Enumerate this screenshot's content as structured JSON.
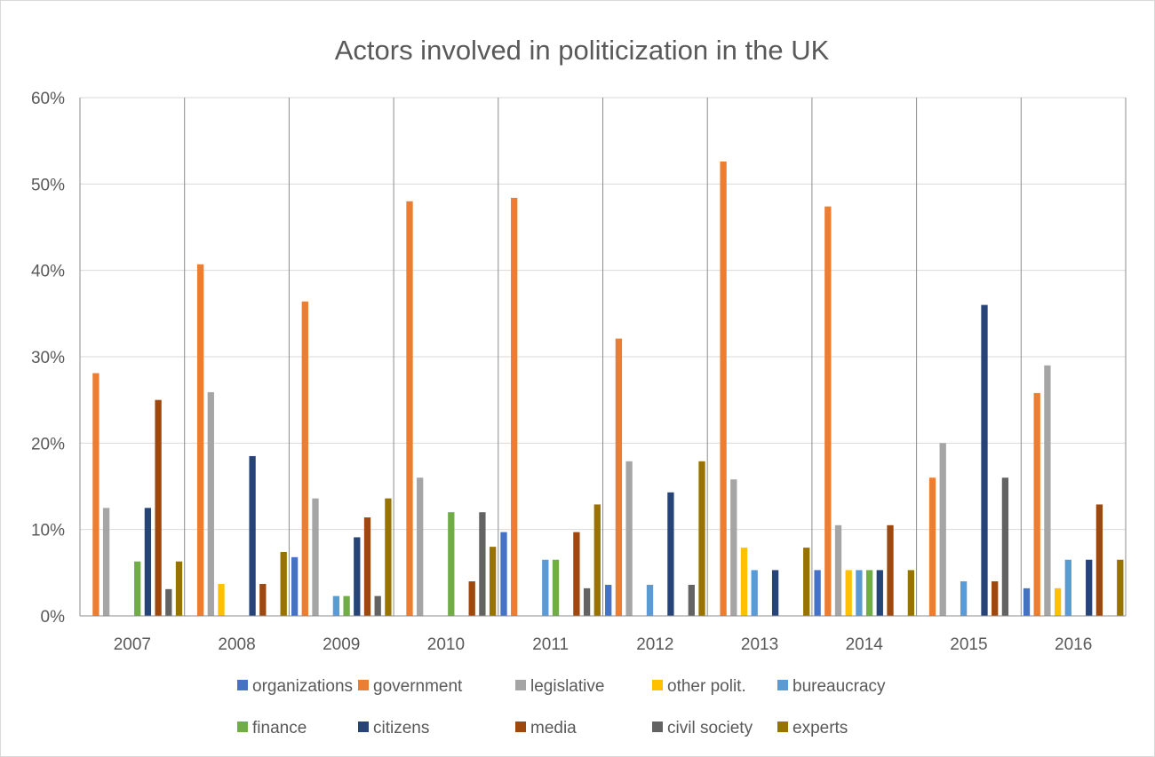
{
  "chart_data": {
    "type": "bar",
    "title": "Actors involved in politicization in the UK",
    "xlabel": "",
    "ylabel": "",
    "ylim": [
      0,
      0.6
    ],
    "y_ticks": [
      0,
      0.1,
      0.2,
      0.3,
      0.4,
      0.5,
      0.6
    ],
    "y_tick_labels": [
      "0%",
      "10%",
      "20%",
      "30%",
      "40%",
      "50%",
      "60%"
    ],
    "grid": true,
    "legend_position": "bottom",
    "categories": [
      "2007",
      "2008",
      "2009",
      "2010",
      "2011",
      "2012",
      "2013",
      "2014",
      "2015",
      "2016"
    ],
    "series": [
      {
        "name": "organizations",
        "color": "#4472c4",
        "values": [
          0,
          0,
          0.068,
          0,
          0.097,
          0.036,
          0,
          0.053,
          0,
          0.032
        ]
      },
      {
        "name": "government",
        "color": "#ed7d31",
        "values": [
          0.281,
          0.407,
          0.364,
          0.48,
          0.484,
          0.321,
          0.526,
          0.474,
          0.16,
          0.258
        ]
      },
      {
        "name": "legislative",
        "color": "#a5a5a5",
        "values": [
          0.125,
          0.259,
          0.136,
          0.16,
          0,
          0.179,
          0.158,
          0.105,
          0.2,
          0.29
        ]
      },
      {
        "name": "other polit.",
        "color": "#ffc000",
        "values": [
          0,
          0.037,
          0,
          0,
          0,
          0,
          0.079,
          0.053,
          0,
          0.032
        ]
      },
      {
        "name": "bureaucracy",
        "color": "#5b9bd5",
        "values": [
          0,
          0,
          0.023,
          0,
          0.065,
          0.036,
          0.053,
          0.053,
          0.04,
          0.065
        ]
      },
      {
        "name": "finance",
        "color": "#70ad47",
        "values": [
          0.063,
          0,
          0.023,
          0.12,
          0.065,
          0,
          0,
          0.053,
          0,
          0
        ]
      },
      {
        "name": "citizens",
        "color": "#264478",
        "values": [
          0.125,
          0.185,
          0.091,
          0,
          0,
          0.143,
          0.053,
          0.053,
          0.36,
          0.065
        ]
      },
      {
        "name": "media",
        "color": "#9e480e",
        "values": [
          0.25,
          0.037,
          0.114,
          0.04,
          0.097,
          0,
          0,
          0.105,
          0.04,
          0.129
        ]
      },
      {
        "name": "civil society",
        "color": "#636363",
        "values": [
          0.031,
          0,
          0.023,
          0.12,
          0.032,
          0.036,
          0,
          0,
          0.16,
          0
        ]
      },
      {
        "name": "experts",
        "color": "#997300",
        "values": [
          0.063,
          0.074,
          0.136,
          0.08,
          0.129,
          0.179,
          0.079,
          0.053,
          0,
          0.065
        ]
      }
    ]
  }
}
